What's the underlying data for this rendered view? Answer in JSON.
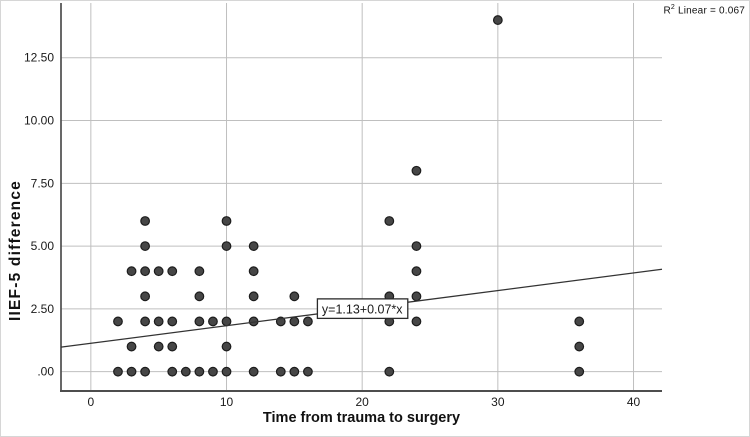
{
  "figure": {
    "r_squared_annotation": {
      "base": "R",
      "sup": "2",
      "rest": " Linear = 0.067"
    }
  },
  "chart_data": {
    "type": "scatter",
    "title": "",
    "xlabel": "Time from trauma to surgery",
    "ylabel": "IIEF-5 difference",
    "x_ticks": [
      {
        "value": 0,
        "label": "0"
      },
      {
        "value": 10,
        "label": "10"
      },
      {
        "value": 20,
        "label": "20"
      },
      {
        "value": 30,
        "label": "30"
      },
      {
        "value": 40,
        "label": "40"
      }
    ],
    "y_ticks": [
      {
        "value": 0,
        "label": ".00"
      },
      {
        "value": 2.5,
        "label": "2.50"
      },
      {
        "value": 5,
        "label": "5.00"
      },
      {
        "value": 7.5,
        "label": "7.50"
      },
      {
        "value": 10,
        "label": "10.00"
      },
      {
        "value": 12.5,
        "label": "12.50"
      }
    ],
    "xlim": [
      -2.2,
      42.1
    ],
    "ylim": [
      -0.77,
      14.68
    ],
    "grid": true,
    "legend_position": "none",
    "points": [
      [
        2,
        0
      ],
      [
        2,
        2
      ],
      [
        3,
        0
      ],
      [
        3,
        1
      ],
      [
        3,
        4
      ],
      [
        4,
        0
      ],
      [
        4,
        2
      ],
      [
        4,
        3
      ],
      [
        4,
        4
      ],
      [
        4,
        5
      ],
      [
        4,
        6
      ],
      [
        5,
        1
      ],
      [
        5,
        2
      ],
      [
        5,
        4
      ],
      [
        6,
        0
      ],
      [
        6,
        1
      ],
      [
        6,
        2
      ],
      [
        6,
        4
      ],
      [
        7,
        0
      ],
      [
        8,
        0
      ],
      [
        8,
        2
      ],
      [
        8,
        3
      ],
      [
        8,
        4
      ],
      [
        9,
        0
      ],
      [
        9,
        2
      ],
      [
        10,
        0
      ],
      [
        10,
        1
      ],
      [
        10,
        2
      ],
      [
        10,
        5
      ],
      [
        10,
        6
      ],
      [
        12,
        0
      ],
      [
        12,
        2
      ],
      [
        12,
        3
      ],
      [
        12,
        4
      ],
      [
        12,
        5
      ],
      [
        14,
        0
      ],
      [
        14,
        2
      ],
      [
        15,
        0
      ],
      [
        15,
        2
      ],
      [
        15,
        3
      ],
      [
        16,
        0
      ],
      [
        16,
        2
      ],
      [
        22,
        0
      ],
      [
        22,
        2
      ],
      [
        22,
        3
      ],
      [
        22,
        6
      ],
      [
        24,
        2
      ],
      [
        24,
        3
      ],
      [
        24,
        4
      ],
      [
        24,
        5
      ],
      [
        24,
        8
      ],
      [
        30,
        14
      ],
      [
        36,
        0
      ],
      [
        36,
        1
      ],
      [
        36,
        2
      ]
    ],
    "regression_line": {
      "intercept": 1.13,
      "slope": 0.07
    },
    "annotation_box": {
      "text": "y=1.13+0.07*x",
      "anchor_x": 16.7,
      "anchor_y": 2.5
    },
    "r_squared": 0.067,
    "colors": {
      "background": "#ffffff",
      "grid": "#bfbfbf",
      "axis": "#4d4d4d",
      "point_fill": "#464646",
      "point_stroke": "#1c1c1c",
      "line": "#333333",
      "text": "#1a1a1a",
      "annotation_border": "#2b2b2b",
      "annotation_fill": "#ffffff"
    }
  }
}
